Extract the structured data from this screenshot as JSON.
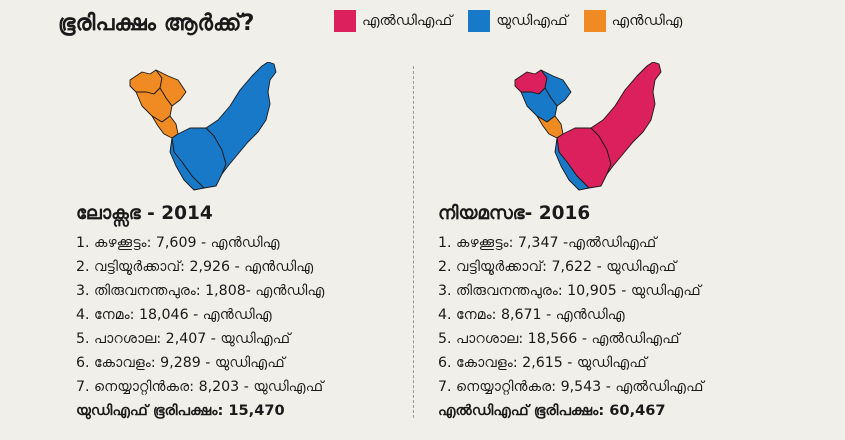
{
  "title": "ഭൂരിപക്ഷം ആർക്ക്?",
  "legend": [
    {
      "label": "എൽഡിഎഫ്",
      "color": "#dc1f5d"
    },
    {
      "label": "യുഡിഎഫ്",
      "color": "#1779c8"
    },
    {
      "label": "എൻഡിഎ",
      "color": "#f08a22"
    }
  ],
  "lok_sabha": {
    "heading": "ലോക്സഭ - 2014",
    "rows": [
      "1. കഴക്കൂട്ടം: 7,609 - എൻഡിഎ",
      "2. വട്ടിയൂർക്കാവ്: 2,926 - എൻഡിഎ",
      "3. തിരുവനന്തപുരം: 1,808- എൻഡിഎ",
      "4. നേമം: 18,046 - എൻഡിഎ",
      "5. പാറശാല: 2,407 - യുഡിഎഫ്",
      "6. കോവളം: 9,289 - യുഡിഎഫ്",
      "7. നെയ്യാറ്റിൻകര: 8,203 - യുഡിഎഫ്"
    ],
    "summary": "യുഡിഎഫ് ഭൂരിപക്ഷം: 15,470",
    "map_colors": [
      "#f08a22",
      "#f08a22",
      "#f08a22",
      "#f08a22",
      "#1779c8",
      "#1779c8",
      "#1779c8"
    ]
  },
  "niyamasabha": {
    "heading": "നിയമസഭ- 2016",
    "rows": [
      "1. കഴക്കൂട്ടം: 7,347 -എൽഡിഎഫ്",
      "2. വട്ടിയൂർക്കാവ്: 7,622 - യുഡിഎഫ്",
      "3. തിരുവനന്തപുരം: 10,905 - യുഡിഎഫ്",
      "4. നേമം: 8,671 - എൻഡിഎ",
      "5. പാറശാല: 18,566 - എൽഡിഎഫ്",
      "6. കോവളം: 2,615 - യുഡിഎഫ്",
      "7. നെയ്യാറ്റിൻകര: 9,543 - എൽഡിഎഫ്"
    ],
    "summary": "എൽഡിഎഫ് ഭൂരിപക്ഷം: 60,467",
    "map_colors": [
      "#dc1f5d",
      "#1779c8",
      "#1779c8",
      "#f08a22",
      "#dc1f5d",
      "#1779c8",
      "#dc1f5d"
    ]
  }
}
